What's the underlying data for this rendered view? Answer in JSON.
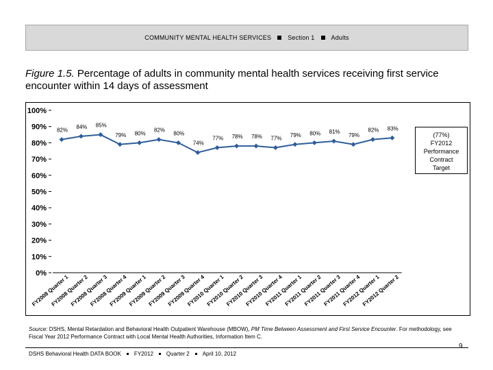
{
  "header": {
    "title": "COMMUNITY MENTAL HEALTH SERVICES",
    "section": "Section 1",
    "population": "Adults"
  },
  "figure": {
    "label": "Figure 1.5.",
    "title": "Percentage of adults in community mental health services receiving first service encounter within 14 days of assessment"
  },
  "target": {
    "value_label": "(77%)",
    "year": "FY2012",
    "line1": "Performance",
    "line2": "Contract",
    "line3": "Target"
  },
  "chart_data": {
    "type": "line",
    "categories": [
      "FY2008 Quarter 1",
      "FY2008 Quarter 2",
      "FY2008 Quarter 3",
      "FY2008 Quarter 4",
      "FY2009 Quarter 1",
      "FY2009 Quarter 2",
      "FY2009 Quarter 3",
      "FY2009 Quarter 4",
      "FY2010 Quarter 1",
      "FY2010 Quarter 2",
      "FY2010 Quarter 3",
      "FY2010 Quarter 4",
      "FY2011 Quarter 1",
      "FY2011 Quarter 2",
      "FY2011 Quarter 3",
      "FY2011 Quarter 4",
      "FY2012 Quarter 1",
      "FY2012 Quarter 2"
    ],
    "values": [
      82,
      84,
      85,
      79,
      80,
      82,
      80,
      74,
      77,
      78,
      78,
      77,
      79,
      80,
      81,
      79,
      82,
      83
    ],
    "data_labels": [
      "82%",
      "84%",
      "85%",
      "79%",
      "80%",
      "82%",
      "80%",
      "74%",
      "77%",
      "78%",
      "78%",
      "77%",
      "79%",
      "80%",
      "81%",
      "79%",
      "82%",
      "83%"
    ],
    "y_ticks": [
      "0%",
      "10%",
      "20%",
      "30%",
      "40%",
      "50%",
      "60%",
      "70%",
      "80%",
      "90%",
      "100%"
    ],
    "ylim": [
      0,
      100
    ],
    "grid": false,
    "line_color": "#2e5c9a",
    "title": "",
    "xlabel": "",
    "ylabel": ""
  },
  "source": {
    "prefix": "Source:",
    "text": " DSHS, Mental Retardation and Behavioral Health Outpatient Warehouse (MBOW), ",
    "italic": "PM Time Between Assessment and First Service Encounter",
    "text2": ". For methodology, see Fiscal Year 2012 Performance Contract with Local Mental Health Authorities, Information Item C."
  },
  "page_number": "9",
  "footer": {
    "book": "DSHS Behavioral Health DATA BOOK",
    "year": "FY2012",
    "quarter": "Quarter 2",
    "date": "April 10, 2012"
  }
}
